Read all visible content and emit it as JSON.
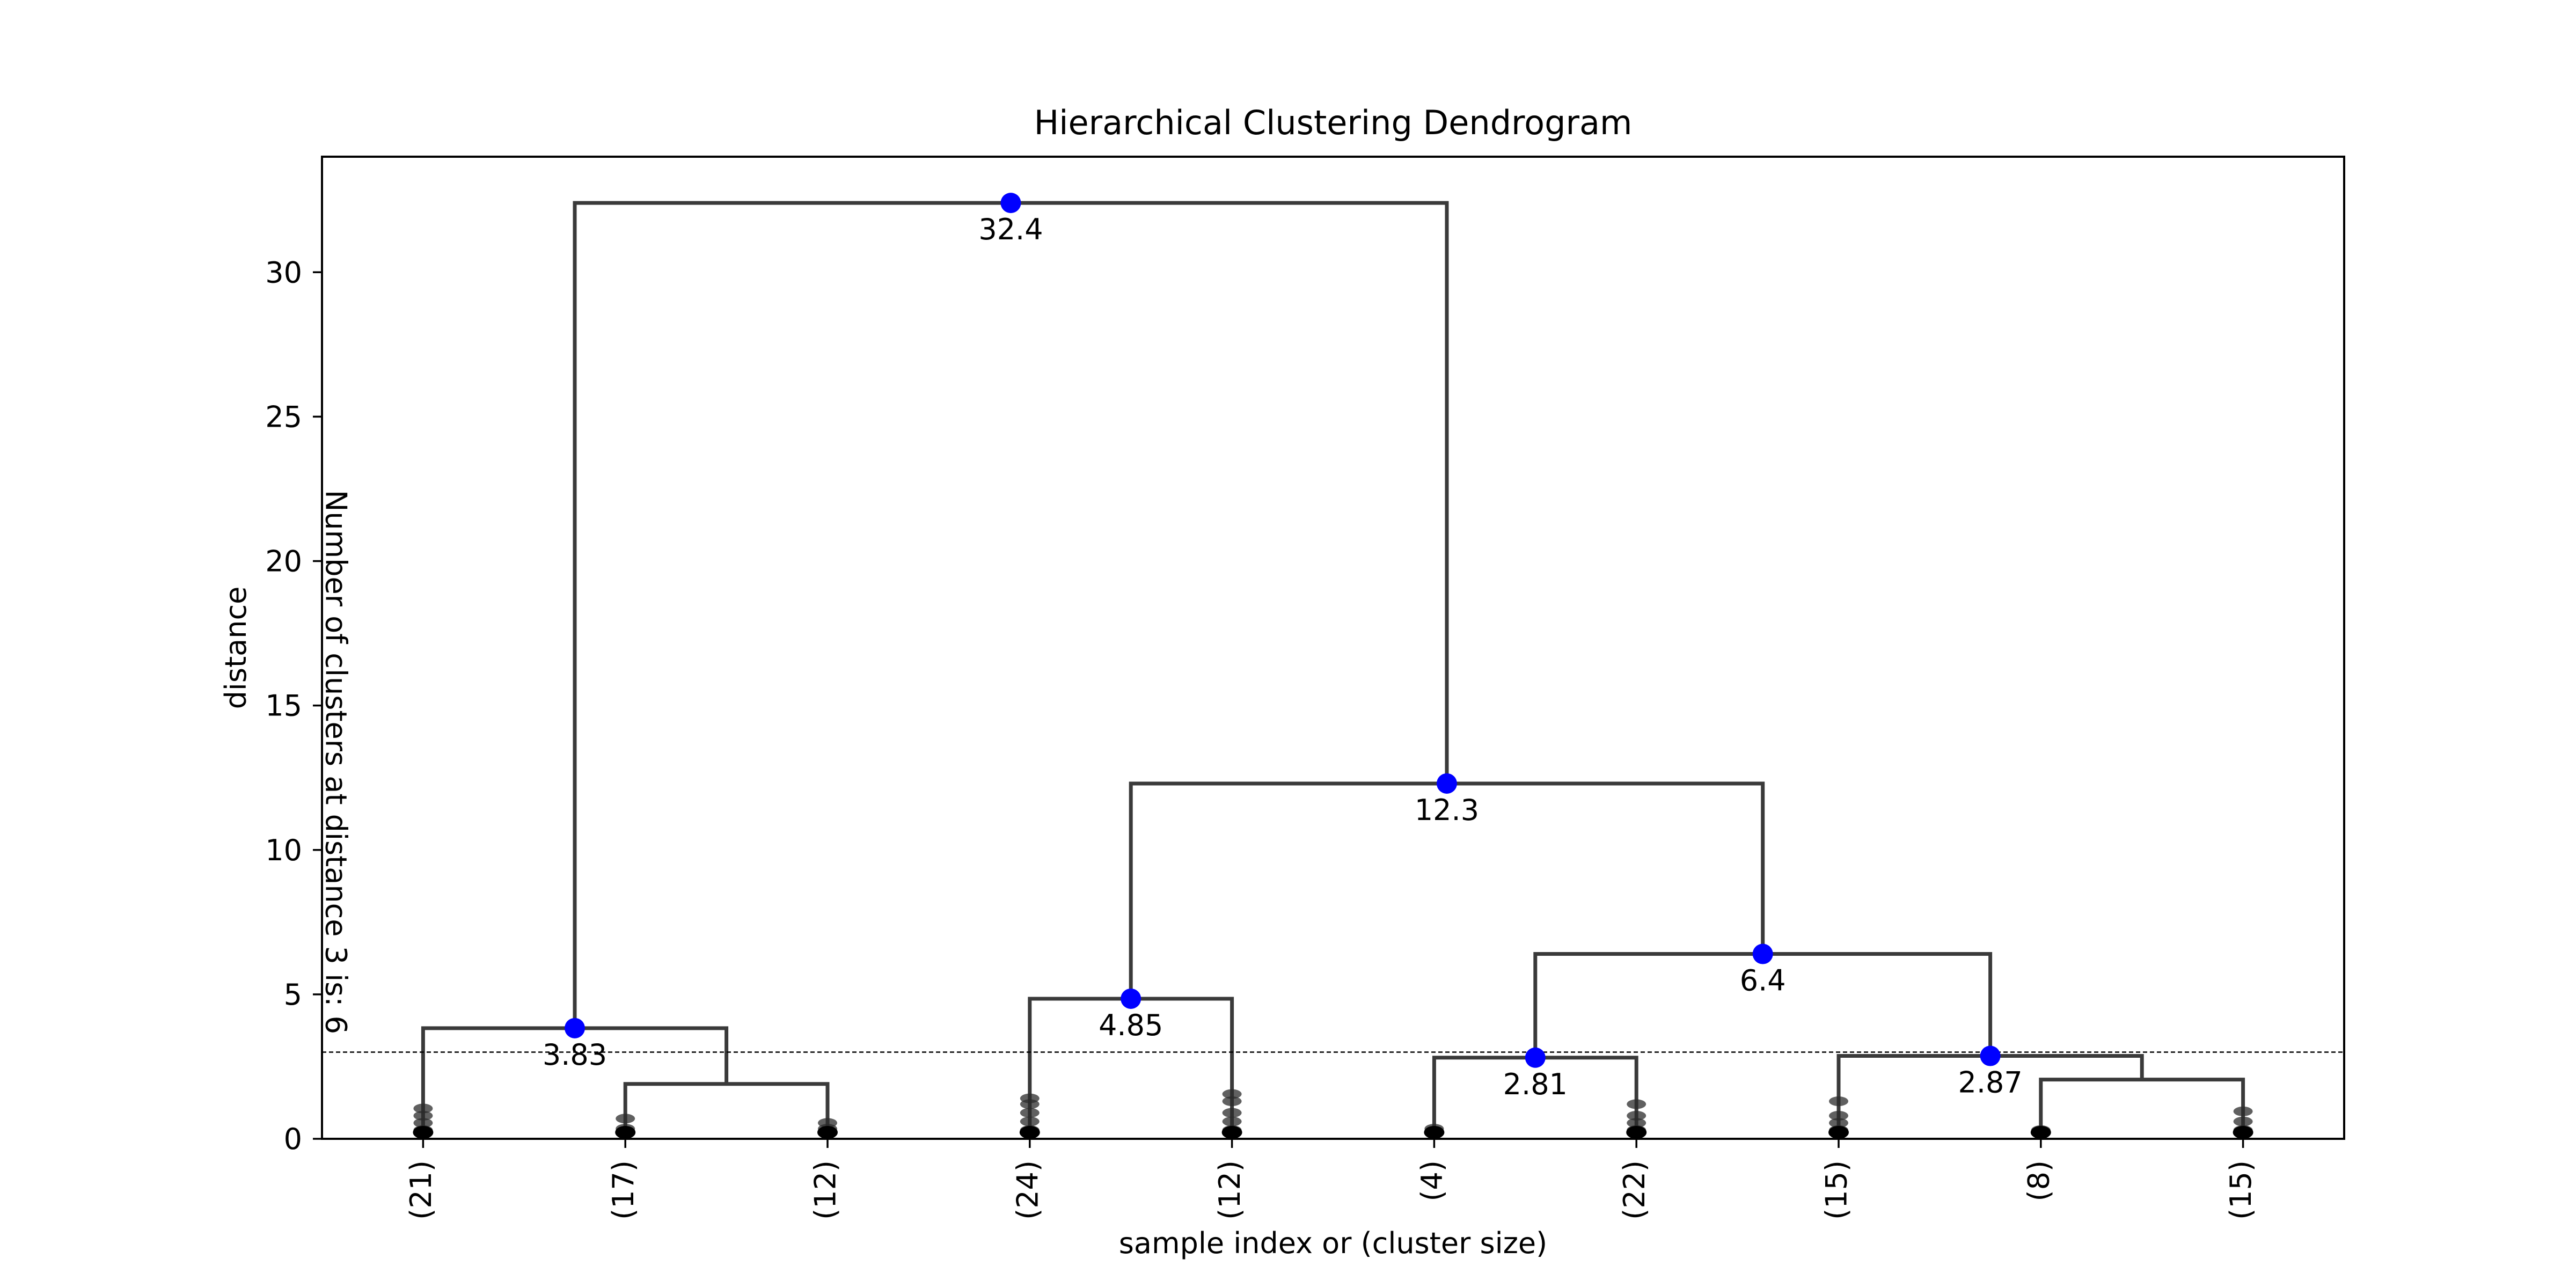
{
  "chart_data": {
    "type": "dendrogram",
    "title": "Hierarchical Clustering Dendrogram",
    "xlabel": "sample index or (cluster size)",
    "ylabel": "distance",
    "ylim": [
      0,
      34
    ],
    "yticks": [
      0,
      5,
      10,
      15,
      20,
      25,
      30
    ],
    "grid": false,
    "leaves": [
      "(21)",
      "(17)",
      "(12)",
      "(24)",
      "(12)",
      "(4)",
      "(22)",
      "(15)",
      "(8)",
      "(15)"
    ],
    "merges": [
      {
        "left": "leaf:1",
        "right": "leaf:2",
        "distance": 1.9,
        "label": ""
      },
      {
        "left": "leaf:0",
        "right": "merge:0",
        "distance": 3.83,
        "label": "3.83"
      },
      {
        "left": "leaf:3",
        "right": "leaf:4",
        "distance": 4.85,
        "label": "4.85"
      },
      {
        "left": "leaf:5",
        "right": "leaf:6",
        "distance": 2.81,
        "label": "2.81"
      },
      {
        "left": "leaf:8",
        "right": "leaf:9",
        "distance": 2.05,
        "label": ""
      },
      {
        "left": "leaf:7",
        "right": "merge:4",
        "distance": 2.87,
        "label": "2.87"
      },
      {
        "left": "merge:3",
        "right": "merge:5",
        "distance": 6.4,
        "label": "6.4"
      },
      {
        "left": "merge:2",
        "right": "merge:6",
        "distance": 12.3,
        "label": "12.3"
      },
      {
        "left": "merge:1",
        "right": "merge:7",
        "distance": 32.4,
        "label": "32.4"
      }
    ],
    "leaf_sub_heights": [
      [
        0.3,
        0.55,
        0.8,
        1.05
      ],
      [
        0.35,
        0.7
      ],
      [
        0.35,
        0.55
      ],
      [
        0.3,
        0.6,
        0.9,
        1.2,
        1.4
      ],
      [
        0.3,
        0.6,
        0.9,
        1.3,
        1.55
      ],
      [
        0.35
      ],
      [
        0.3,
        0.55,
        0.8,
        1.2
      ],
      [
        0.3,
        0.55,
        0.8,
        1.3
      ],
      [
        0.3
      ],
      [
        0.3,
        0.6,
        0.95
      ]
    ],
    "cut_line": {
      "distance": 3,
      "annotation": "Number of clusters at distance 3 is: 6"
    },
    "colors": {
      "link": "#3a3a3a",
      "node": "#0000ff",
      "leaf_marker": "#2b2b2b",
      "cut_line": "#000000"
    }
  }
}
